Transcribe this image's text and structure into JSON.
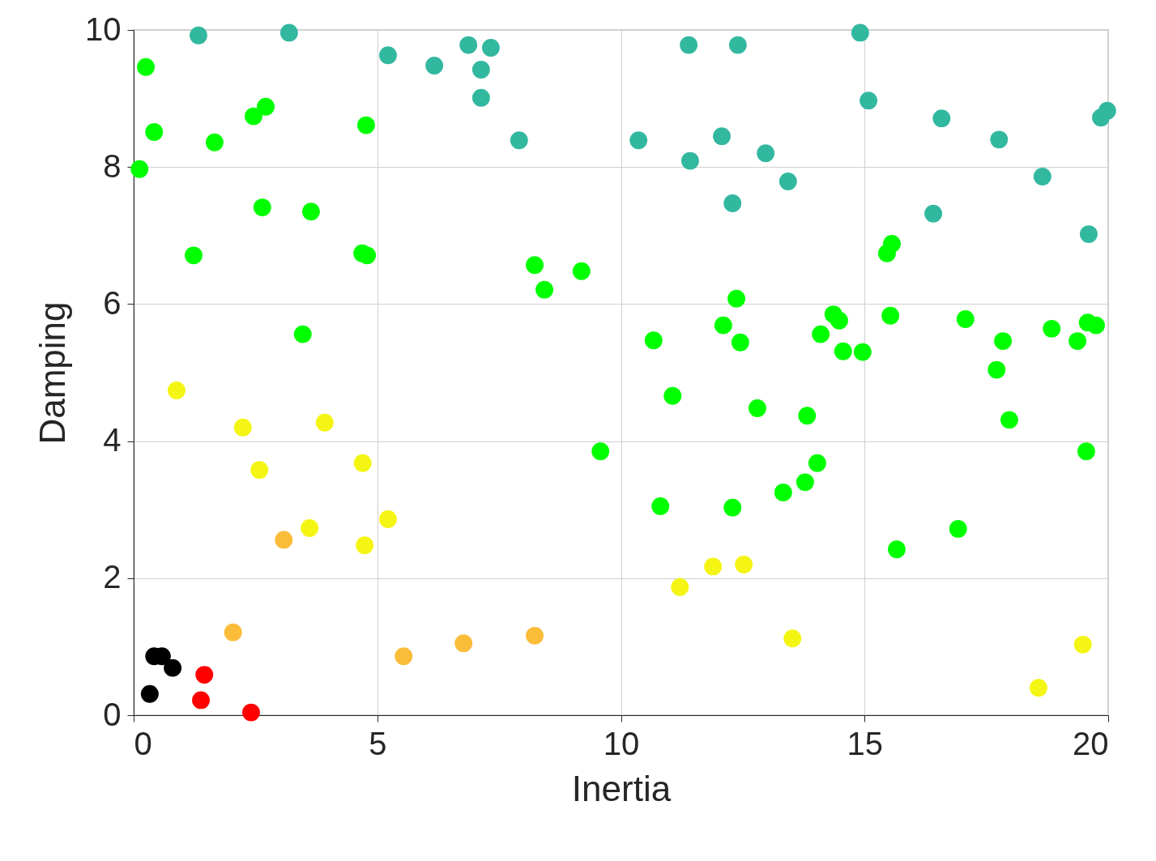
{
  "chart_data": {
    "type": "scatter",
    "xlabel": "Inertia",
    "ylabel": "Damping",
    "xlim": [
      0,
      20
    ],
    "ylim": [
      0,
      10
    ],
    "xticks": [
      0,
      5,
      10,
      15,
      20
    ],
    "yticks": [
      0,
      2,
      4,
      6,
      8,
      10
    ],
    "grid": true,
    "marker": "circle",
    "series": [
      {
        "color": "#000000",
        "x": [
          0.33,
          0.42,
          0.58,
          0.8
        ],
        "values": [
          0.31,
          0.86,
          0.86,
          0.69
        ]
      },
      {
        "color": "#ff0000",
        "x": [
          1.45,
          1.38,
          2.41
        ],
        "values": [
          0.59,
          0.22,
          0.04
        ]
      },
      {
        "color": "#fbbc3a",
        "x": [
          2.04,
          3.08,
          5.54,
          6.77,
          8.23
        ],
        "values": [
          1.21,
          2.56,
          0.86,
          1.05,
          1.16
        ]
      },
      {
        "color": "#f5f514",
        "x": [
          0.88,
          2.24,
          2.58,
          3.92,
          4.7,
          3.61,
          4.74,
          5.22,
          11.21,
          11.89,
          12.52,
          13.52,
          18.57,
          19.48
        ],
        "values": [
          4.74,
          4.2,
          3.58,
          4.27,
          3.68,
          2.73,
          2.48,
          2.86,
          1.87,
          2.17,
          2.2,
          1.12,
          0.4,
          1.03
        ]
      },
      {
        "color": "#00ff00",
        "x": [
          0.25,
          0.42,
          0.12,
          1.66,
          2.46,
          2.71,
          4.77,
          2.64,
          3.64,
          1.23,
          4.69,
          4.79,
          3.47,
          8.23,
          8.43,
          9.19,
          9.58,
          10.67,
          10.81,
          11.06,
          12.1,
          12.37,
          12.45,
          12.29,
          12.8,
          13.33,
          13.78,
          13.82,
          14.03,
          14.1,
          14.36,
          14.48,
          14.56,
          14.96,
          15.46,
          15.56,
          15.53,
          15.66,
          16.92,
          17.07,
          17.71,
          17.84,
          17.97,
          18.84,
          19.37,
          19.55,
          19.58,
          19.75
        ],
        "values": [
          9.46,
          8.51,
          7.97,
          8.36,
          8.74,
          8.88,
          8.61,
          7.41,
          7.35,
          6.71,
          6.74,
          6.71,
          5.56,
          6.57,
          6.21,
          6.48,
          3.85,
          5.47,
          3.05,
          4.66,
          5.69,
          6.08,
          5.44,
          3.03,
          4.48,
          3.25,
          3.4,
          4.37,
          3.68,
          5.56,
          5.85,
          5.76,
          5.31,
          5.3,
          6.74,
          6.88,
          5.83,
          2.42,
          2.72,
          5.78,
          5.04,
          5.46,
          4.31,
          5.64,
          5.46,
          3.85,
          5.73,
          5.69
        ]
      },
      {
        "color": "#33b8a0",
        "x": [
          1.33,
          3.19,
          5.22,
          6.17,
          6.87,
          7.13,
          7.33,
          7.13,
          7.91,
          10.36,
          11.39,
          12.4,
          11.42,
          12.07,
          12.97,
          12.29,
          13.43,
          14.91,
          15.08,
          16.58,
          16.41,
          17.76,
          18.65,
          19.6,
          19.85,
          19.98
        ],
        "values": [
          9.92,
          9.96,
          9.63,
          9.48,
          9.78,
          9.42,
          9.74,
          9.01,
          8.39,
          8.39,
          9.78,
          9.78,
          8.09,
          8.45,
          8.2,
          7.47,
          7.79,
          9.96,
          8.97,
          8.71,
          7.32,
          8.4,
          7.86,
          7.02,
          8.72,
          8.82
        ]
      }
    ]
  }
}
